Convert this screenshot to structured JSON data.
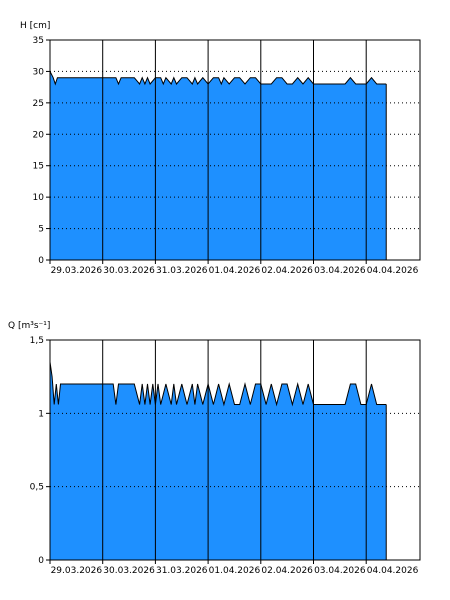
{
  "chart_data": [
    {
      "type": "area",
      "ylabel": "H [cm]",
      "ylim": [
        0,
        35
      ],
      "yticks": [
        "0",
        "5",
        "10",
        "15",
        "20",
        "25",
        "30",
        "35"
      ],
      "xtick_labels": [
        "29.03.2026",
        "30.03.2026",
        "31.03.2026",
        "01.04.2026",
        "02.04.2026",
        "03.04.2026",
        "04.04.2026"
      ],
      "grid": "horizontal dotted, vertical solid at day boundaries",
      "fill_color": "#1e90ff",
      "x_days": [
        0,
        0.06,
        0.1,
        0.14,
        0.2,
        0.5,
        1.0,
        1.25,
        1.3,
        1.35,
        1.6,
        1.7,
        1.75,
        1.8,
        1.85,
        1.9,
        2.0,
        2.1,
        2.15,
        2.2,
        2.3,
        2.35,
        2.4,
        2.5,
        2.6,
        2.7,
        2.75,
        2.8,
        2.9,
        3.0,
        3.1,
        3.2,
        3.25,
        3.3,
        3.4,
        3.5,
        3.6,
        3.7,
        3.8,
        3.9,
        4.0,
        4.2,
        4.3,
        4.4,
        4.5,
        4.6,
        4.7,
        4.8,
        4.9,
        5.0,
        5.2,
        5.4,
        5.6,
        5.7,
        5.8,
        5.9,
        6.0,
        6.1,
        6.2,
        6.3,
        6.38
      ],
      "values": [
        30,
        29,
        28,
        29,
        29,
        29,
        29,
        29,
        28,
        29,
        29,
        28,
        29,
        28,
        29,
        28,
        29,
        29,
        28,
        29,
        28,
        29,
        28,
        29,
        29,
        28,
        29,
        28,
        29,
        28,
        29,
        29,
        28,
        29,
        28,
        29,
        29,
        28,
        29,
        29,
        28,
        28,
        29,
        29,
        28,
        28,
        29,
        28,
        29,
        28,
        28,
        28,
        28,
        29,
        28,
        28,
        28,
        29,
        28,
        28,
        28
      ]
    },
    {
      "type": "area",
      "ylabel": "Q [m³s⁻¹]",
      "ylim": [
        0,
        1.5
      ],
      "yticks": [
        "0",
        "0,5",
        "1",
        "1,5"
      ],
      "xtick_labels": [
        "29.03.2026",
        "30.03.2026",
        "31.03.2026",
        "01.04.2026",
        "02.04.2026",
        "03.04.2026",
        "04.04.2026"
      ],
      "grid": "horizontal dotted, vertical solid at day boundaries",
      "fill_color": "#1e90ff",
      "x_days": [
        0,
        0.04,
        0.08,
        0.12,
        0.16,
        0.2,
        0.3,
        0.5,
        1.0,
        1.2,
        1.25,
        1.3,
        1.6,
        1.7,
        1.75,
        1.8,
        1.85,
        1.9,
        1.95,
        2.0,
        2.05,
        2.1,
        2.2,
        2.3,
        2.35,
        2.4,
        2.5,
        2.6,
        2.7,
        2.75,
        2.8,
        2.9,
        3.0,
        3.1,
        3.2,
        3.3,
        3.4,
        3.5,
        3.6,
        3.7,
        3.8,
        3.9,
        4.0,
        4.1,
        4.2,
        4.3,
        4.4,
        4.5,
        4.6,
        4.7,
        4.8,
        4.9,
        5.0,
        5.1,
        5.2,
        5.4,
        5.6,
        5.7,
        5.8,
        5.9,
        6.0,
        6.1,
        6.2,
        6.3,
        6.38
      ],
      "values": [
        1.35,
        1.25,
        1.06,
        1.2,
        1.06,
        1.2,
        1.2,
        1.2,
        1.2,
        1.2,
        1.06,
        1.2,
        1.2,
        1.06,
        1.2,
        1.06,
        1.2,
        1.06,
        1.2,
        1.06,
        1.2,
        1.06,
        1.2,
        1.06,
        1.2,
        1.06,
        1.2,
        1.06,
        1.2,
        1.06,
        1.2,
        1.06,
        1.2,
        1.06,
        1.2,
        1.06,
        1.2,
        1.06,
        1.06,
        1.2,
        1.06,
        1.2,
        1.2,
        1.06,
        1.2,
        1.06,
        1.2,
        1.2,
        1.06,
        1.2,
        1.06,
        1.2,
        1.06,
        1.06,
        1.06,
        1.06,
        1.06,
        1.2,
        1.2,
        1.06,
        1.06,
        1.2,
        1.06,
        1.06,
        1.06
      ]
    }
  ]
}
